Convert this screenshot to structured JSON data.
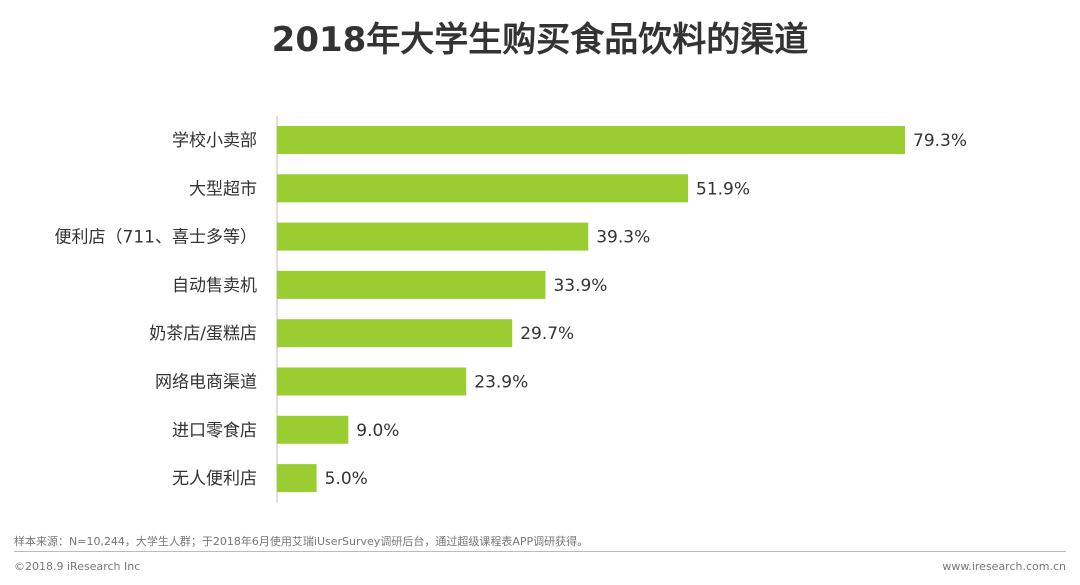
{
  "chart_data": {
    "type": "bar",
    "orientation": "horizontal",
    "title": "2018年大学生购买食品饮料的渠道",
    "categories": [
      "学校小卖部",
      "大型超市",
      "便利店（711、喜士多等）",
      "自动售卖机",
      "奶茶店/蛋糕店",
      "网络电商渠道",
      "进口零食店",
      "无人便利店"
    ],
    "values": [
      79.3,
      51.9,
      39.3,
      33.9,
      29.7,
      23.9,
      9.0,
      5.0
    ],
    "value_labels": [
      "79.3%",
      "51.9%",
      "39.3%",
      "33.9%",
      "29.7%",
      "23.9%",
      "9.0%",
      "5.0%"
    ],
    "unit": "%",
    "xlim": [
      0,
      100
    ],
    "xlabel": "",
    "ylabel": "",
    "grid": false,
    "legend": "none",
    "bar_color": "#9acd32"
  },
  "footer": {
    "source": "样本来源：N=10,244，大学生人群；于2018年6月使用艾瑞iUserSurvey调研后台，通过超级课程表APP调研获得。",
    "copyright": "©2018.9 iResearch Inc",
    "website": "www.iresearch.com.cn"
  }
}
